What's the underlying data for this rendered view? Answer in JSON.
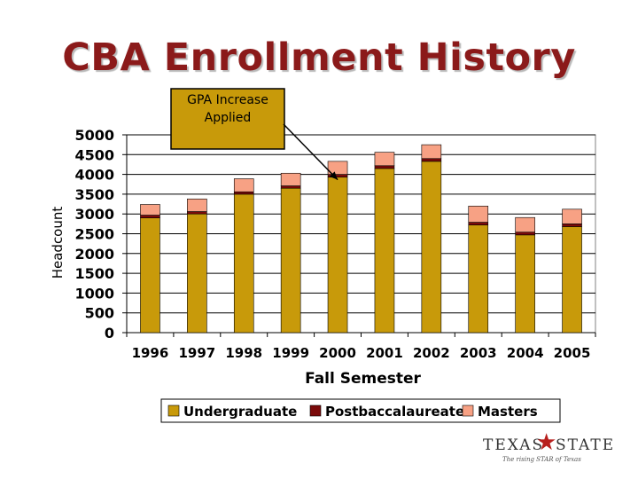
{
  "title": "CBA Enrollment History",
  "annotation": {
    "text_line1": "GPA Increase",
    "text_line2": "Applied",
    "points_to": "2000"
  },
  "logo": {
    "left": "TEXAS",
    "right": "STATE",
    "tagline": "The rising STAR of Texas"
  },
  "colors": {
    "undergraduate": "#c89a0a",
    "postbaccalaureate": "#7a0a0a",
    "masters": "#f7a184",
    "title": "#8b1a1a",
    "annotation_fill": "#c89a0a"
  },
  "chart_data": {
    "type": "bar",
    "stacked": true,
    "categories": [
      "1996",
      "1997",
      "1998",
      "1999",
      "2000",
      "2001",
      "2002",
      "2003",
      "2004",
      "2005"
    ],
    "series": [
      {
        "name": "Undergraduate",
        "values": [
          2900,
          3000,
          3500,
          3650,
          3930,
          4150,
          4330,
          2720,
          2470,
          2680
        ]
      },
      {
        "name": "Postbaccalaureate",
        "values": [
          70,
          60,
          60,
          60,
          70,
          70,
          70,
          70,
          70,
          70
        ]
      },
      {
        "name": "Masters",
        "values": [
          270,
          320,
          330,
          320,
          330,
          340,
          350,
          410,
          370,
          370
        ]
      }
    ],
    "xlabel": "Fall Semester",
    "ylabel": "Headcount",
    "ylim": [
      0,
      5000
    ],
    "yticks": [
      "0",
      "500",
      "1000",
      "1500",
      "2000",
      "2500",
      "3000",
      "3500",
      "4000",
      "4500",
      "5000"
    ],
    "grid": true,
    "legend": "bottom"
  }
}
